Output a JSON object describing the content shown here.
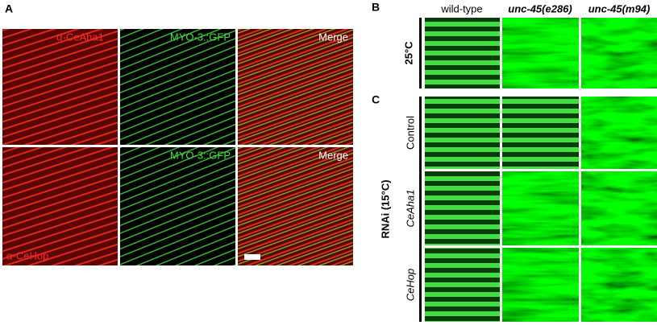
{
  "panel_a": {
    "label": "A",
    "images": [
      [
        "α-CeAha1",
        "MYO-3::GFP",
        "Merge"
      ],
      [
        "α-CeHop",
        "MYO-3::GFP",
        "Merge"
      ]
    ]
  },
  "panel_b": {
    "label": "B",
    "columns": [
      "wild-type",
      "unc-45(e286)",
      "unc-45(m94)"
    ],
    "rows": [
      "25°C"
    ]
  },
  "panel_c": {
    "label": "C",
    "group": "RNAi (15°C)",
    "rows": [
      "Control",
      "CeAha1",
      "CeHop"
    ]
  }
}
